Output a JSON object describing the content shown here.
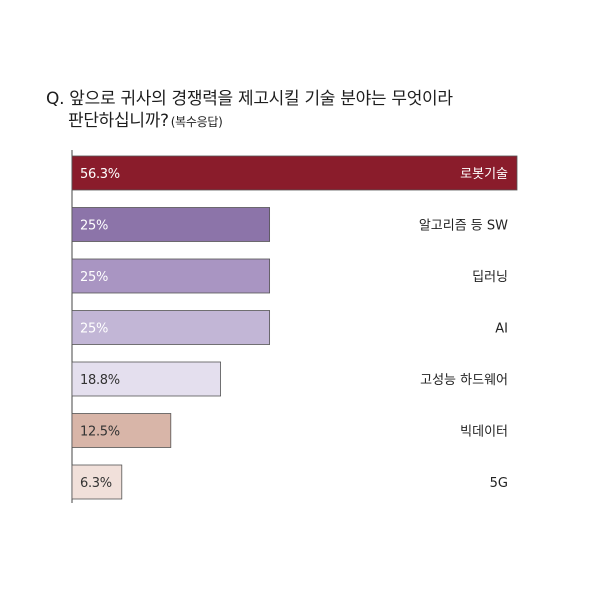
{
  "title_line1": "Q. 앞으로 귀사의 경쟁력을 제고시킬 기술 분야는 무엇이라",
  "title_line2": "판단하십니까?",
  "title_note": "(복수응답)",
  "chart_data": {
    "type": "bar",
    "orientation": "horizontal",
    "categories": [
      "로봇기술",
      "알고리즘 등 SW",
      "딥러닝",
      "AI",
      "고성능 하드웨어",
      "빅데이터",
      "5G"
    ],
    "values": [
      56.3,
      25,
      25,
      25,
      18.8,
      12.5,
      6.3
    ],
    "value_labels": [
      "56.3%",
      "25%",
      "25%",
      "25%",
      "18.8%",
      "12.5%",
      "6.3%"
    ],
    "colors": [
      "#8a1c2b",
      "#8c74a9",
      "#a995c2",
      "#c2b6d6",
      "#e4dfee",
      "#d8b5a8",
      "#f1e0da"
    ],
    "label_colors": [
      "#ffffff",
      "#ffffff",
      "#ffffff",
      "#ffffff",
      "#333333",
      "#333333",
      "#333333"
    ],
    "xlim": [
      0,
      56.3
    ],
    "grid": false,
    "legend": "none"
  }
}
